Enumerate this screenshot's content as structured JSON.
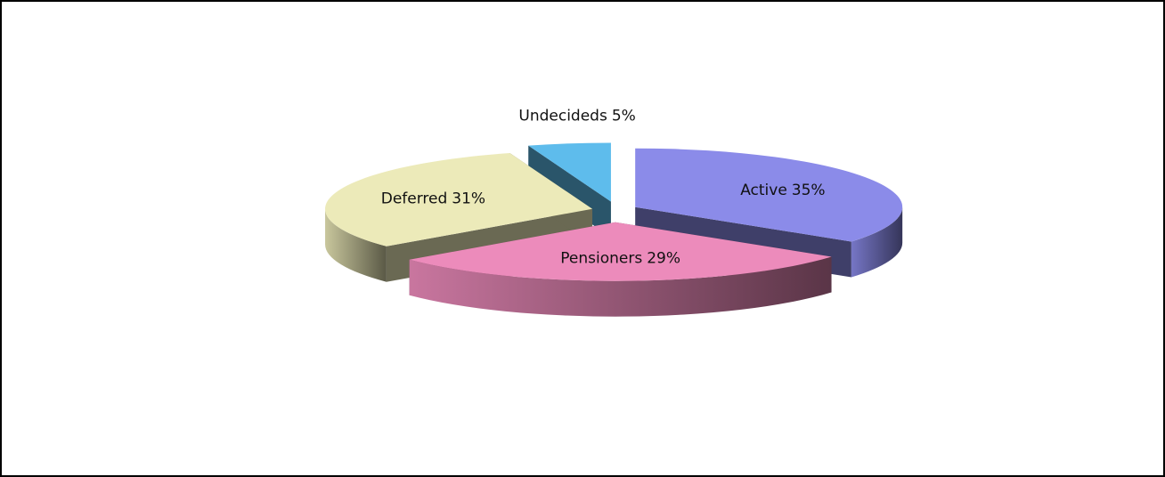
{
  "chart_data": {
    "type": "pie",
    "categories": [
      "Active",
      "Pensioners",
      "Deferred",
      "Undecideds"
    ],
    "values": [
      35,
      29,
      31,
      5
    ],
    "value_labels": [
      "35%",
      "29%",
      "31%",
      "5%"
    ],
    "colors": [
      "#8b8be9",
      "#ec8bbb",
      "#eceab9",
      "#5ebcec"
    ]
  }
}
